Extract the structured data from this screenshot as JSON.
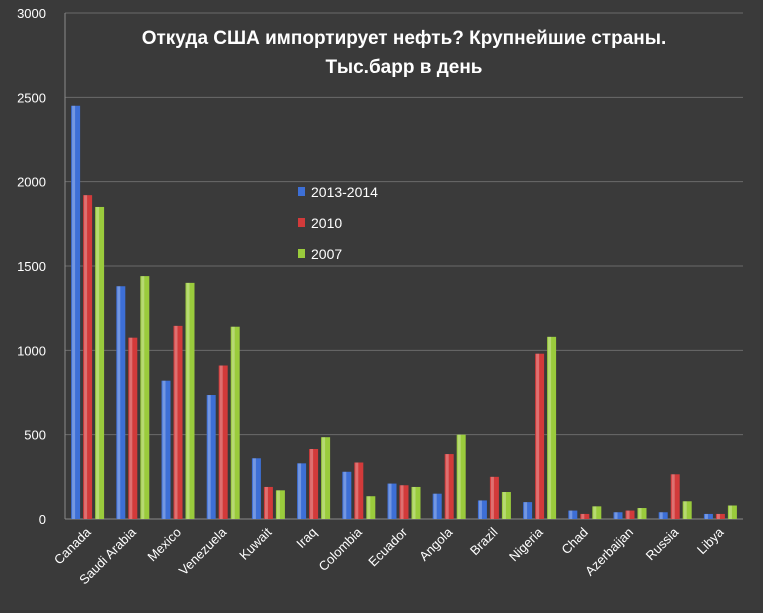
{
  "chart_data": {
    "type": "bar",
    "title_line1": "Откуда США импортирует нефть? Крупнейшие страны.",
    "title_line2": "Тыс.барр в день",
    "xlabel": "",
    "ylabel": "",
    "ylim": [
      0,
      3000
    ],
    "yticks": [
      "0",
      "500",
      "1000",
      "1500",
      "2000",
      "2500",
      "3000"
    ],
    "grid": true,
    "legend_position": "center-left",
    "categories": [
      "Canada",
      "Saudi Arabia",
      "Mexico",
      "Venezuela",
      "Kuwait",
      "Iraq",
      "Colombia",
      "Ecuador",
      "Angola",
      "Brazil",
      "Nigeria",
      "Chad",
      "Azerbaijan",
      "Russia",
      "Libya"
    ],
    "series": [
      {
        "name": "2013-2014",
        "color": "#3d6fd6",
        "values": [
          2450,
          1380,
          820,
          735,
          360,
          330,
          280,
          210,
          150,
          110,
          100,
          50,
          40,
          40,
          30
        ]
      },
      {
        "name": "2010",
        "color": "#d23a3a",
        "values": [
          1920,
          1075,
          1145,
          910,
          190,
          415,
          335,
          200,
          385,
          250,
          980,
          30,
          50,
          265,
          30
        ]
      },
      {
        "name": "2007",
        "color": "#9acb3c",
        "values": [
          1850,
          1440,
          1400,
          1140,
          170,
          485,
          135,
          190,
          500,
          160,
          1080,
          75,
          65,
          105,
          80
        ]
      }
    ]
  }
}
